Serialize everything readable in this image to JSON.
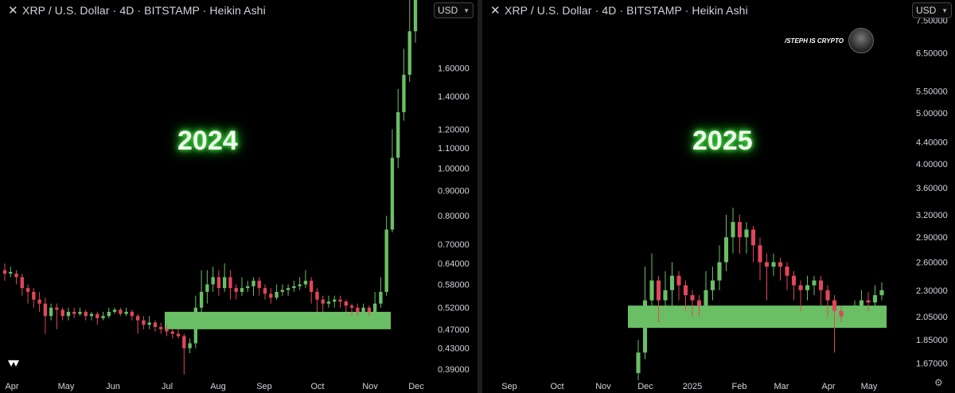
{
  "left": {
    "title": "XRP / U.S. Dollar · 4D · BITSTAMP · Heikin Ashi",
    "currency": "USD",
    "year_label": "2024",
    "chart_data": {
      "type": "candlestick",
      "scale": "log",
      "ylim": [
        0.37,
        2.2
      ],
      "y_ticks": [
        {
          "label": "1.60000",
          "value": 1.6
        },
        {
          "label": "1.40000",
          "value": 1.4
        },
        {
          "label": "1.20000",
          "value": 1.2
        },
        {
          "label": "1.10000",
          "value": 1.1
        },
        {
          "label": "1.00000",
          "value": 1.0
        },
        {
          "label": "0.90000",
          "value": 0.9
        },
        {
          "label": "0.80000",
          "value": 0.8
        },
        {
          "label": "0.70000",
          "value": 0.7
        },
        {
          "label": "0.64000",
          "value": 0.64
        },
        {
          "label": "0.58000",
          "value": 0.58
        },
        {
          "label": "0.52000",
          "value": 0.52
        },
        {
          "label": "0.47000",
          "value": 0.47
        },
        {
          "label": "0.43000",
          "value": 0.43
        },
        {
          "label": "0.39000",
          "value": 0.39
        }
      ],
      "x_ticks": [
        "Apr",
        "May",
        "Jun",
        "Jul",
        "Aug",
        "Sep",
        "Oct",
        "Nov",
        "Dec"
      ],
      "support_zone": {
        "low": 0.47,
        "high": 0.51
      },
      "candles": [
        [
          0.62,
          0.61,
          0.64,
          0.59
        ],
        [
          0.61,
          0.615,
          0.63,
          0.6
        ],
        [
          0.61,
          0.6,
          0.62,
          0.58
        ],
        [
          0.6,
          0.57,
          0.61,
          0.55
        ],
        [
          0.57,
          0.56,
          0.58,
          0.53
        ],
        [
          0.56,
          0.54,
          0.57,
          0.52
        ],
        [
          0.54,
          0.53,
          0.56,
          0.51
        ],
        [
          0.53,
          0.5,
          0.545,
          0.46
        ],
        [
          0.5,
          0.52,
          0.53,
          0.49
        ],
        [
          0.52,
          0.515,
          0.53,
          0.47
        ],
        [
          0.515,
          0.5,
          0.52,
          0.49
        ],
        [
          0.5,
          0.51,
          0.52,
          0.49
        ],
        [
          0.51,
          0.505,
          0.52,
          0.495
        ],
        [
          0.505,
          0.51,
          0.52,
          0.5
        ],
        [
          0.51,
          0.5,
          0.515,
          0.49
        ],
        [
          0.5,
          0.505,
          0.51,
          0.49
        ],
        [
          0.505,
          0.495,
          0.51,
          0.48
        ],
        [
          0.495,
          0.5,
          0.51,
          0.49
        ],
        [
          0.5,
          0.51,
          0.52,
          0.495
        ],
        [
          0.51,
          0.515,
          0.52,
          0.505
        ],
        [
          0.515,
          0.505,
          0.52,
          0.5
        ],
        [
          0.505,
          0.51,
          0.52,
          0.5
        ],
        [
          0.51,
          0.5,
          0.515,
          0.49
        ],
        [
          0.5,
          0.49,
          0.505,
          0.46
        ],
        [
          0.49,
          0.48,
          0.5,
          0.47
        ],
        [
          0.48,
          0.485,
          0.5,
          0.47
        ],
        [
          0.485,
          0.475,
          0.49,
          0.465
        ],
        [
          0.475,
          0.47,
          0.485,
          0.46
        ],
        [
          0.47,
          0.465,
          0.48,
          0.455
        ],
        [
          0.465,
          0.46,
          0.47,
          0.45
        ],
        [
          0.46,
          0.455,
          0.47,
          0.45
        ],
        [
          0.455,
          0.43,
          0.46,
          0.38
        ],
        [
          0.43,
          0.44,
          0.45,
          0.42
        ],
        [
          0.44,
          0.52,
          0.55,
          0.43
        ],
        [
          0.52,
          0.56,
          0.62,
          0.5
        ],
        [
          0.56,
          0.58,
          0.62,
          0.53
        ],
        [
          0.58,
          0.6,
          0.63,
          0.56
        ],
        [
          0.6,
          0.57,
          0.62,
          0.55
        ],
        [
          0.57,
          0.6,
          0.64,
          0.56
        ],
        [
          0.6,
          0.57,
          0.62,
          0.54
        ],
        [
          0.57,
          0.56,
          0.58,
          0.54
        ],
        [
          0.56,
          0.57,
          0.6,
          0.55
        ],
        [
          0.57,
          0.575,
          0.59,
          0.56
        ],
        [
          0.575,
          0.59,
          0.6,
          0.55
        ],
        [
          0.59,
          0.57,
          0.6,
          0.55
        ],
        [
          0.57,
          0.555,
          0.58,
          0.54
        ],
        [
          0.555,
          0.545,
          0.57,
          0.53
        ],
        [
          0.545,
          0.56,
          0.58,
          0.54
        ],
        [
          0.56,
          0.565,
          0.58,
          0.55
        ],
        [
          0.565,
          0.57,
          0.58,
          0.55
        ],
        [
          0.57,
          0.575,
          0.59,
          0.56
        ],
        [
          0.575,
          0.58,
          0.6,
          0.565
        ],
        [
          0.58,
          0.59,
          0.62,
          0.57
        ],
        [
          0.59,
          0.56,
          0.6,
          0.53
        ],
        [
          0.56,
          0.54,
          0.57,
          0.51
        ],
        [
          0.54,
          0.53,
          0.55,
          0.51
        ],
        [
          0.53,
          0.535,
          0.55,
          0.52
        ],
        [
          0.535,
          0.54,
          0.55,
          0.52
        ],
        [
          0.54,
          0.535,
          0.55,
          0.52
        ],
        [
          0.535,
          0.525,
          0.54,
          0.51
        ],
        [
          0.525,
          0.52,
          0.53,
          0.5
        ],
        [
          0.52,
          0.51,
          0.53,
          0.5
        ],
        [
          0.51,
          0.52,
          0.53,
          0.5
        ],
        [
          0.52,
          0.51,
          0.525,
          0.5
        ],
        [
          0.51,
          0.53,
          0.56,
          0.5
        ],
        [
          0.53,
          0.56,
          0.6,
          0.52
        ],
        [
          0.56,
          0.75,
          0.8,
          0.55
        ],
        [
          0.75,
          1.05,
          1.2,
          0.74
        ],
        [
          1.05,
          1.3,
          1.45,
          1.0
        ],
        [
          1.3,
          1.55,
          1.75,
          1.25
        ],
        [
          1.55,
          1.9,
          2.2,
          1.5
        ],
        [
          1.9,
          2.2,
          2.2,
          1.8
        ]
      ]
    }
  },
  "right": {
    "title": "XRP / U.S. Dollar · 4D · BITSTAMP · Heikin Ashi",
    "currency": "USD",
    "year_label": "2025",
    "watermark": "/STEPH IS CRYPTO",
    "chart_data": {
      "type": "candlestick",
      "scale": "log",
      "ylim": [
        1.55,
        8.2
      ],
      "y_ticks": [
        {
          "label": "7.50000",
          "value": 7.5
        },
        {
          "label": "6.50000",
          "value": 6.5
        },
        {
          "label": "5.50000",
          "value": 5.5
        },
        {
          "label": "5.00000",
          "value": 5.0
        },
        {
          "label": "4.40000",
          "value": 4.4
        },
        {
          "label": "4.00000",
          "value": 4.0
        },
        {
          "label": "3.60000",
          "value": 3.6
        },
        {
          "label": "3.20000",
          "value": 3.2
        },
        {
          "label": "2.90000",
          "value": 2.9
        },
        {
          "label": "2.60000",
          "value": 2.6
        },
        {
          "label": "2.30000",
          "value": 2.3
        },
        {
          "label": "2.05000",
          "value": 2.05
        },
        {
          "label": "1.85000",
          "value": 1.85
        },
        {
          "label": "1.67000",
          "value": 1.67
        }
      ],
      "x_ticks": [
        "Sep",
        "Oct",
        "Nov",
        "Dec",
        "2025",
        "Feb",
        "Mar",
        "Apr",
        "May"
      ],
      "support_zone": {
        "low": 1.95,
        "high": 2.15
      },
      "candles": [
        [
          1.6,
          1.75,
          1.85,
          1.55
        ],
        [
          1.75,
          2.2,
          2.55,
          1.7
        ],
        [
          2.2,
          2.4,
          2.7,
          2.0
        ],
        [
          2.4,
          2.2,
          2.45,
          2.0
        ],
        [
          2.2,
          2.3,
          2.5,
          2.1
        ],
        [
          2.3,
          2.45,
          2.6,
          2.15
        ],
        [
          2.45,
          2.35,
          2.5,
          2.2
        ],
        [
          2.35,
          2.25,
          2.4,
          2.1
        ],
        [
          2.25,
          2.2,
          2.3,
          2.05
        ],
        [
          2.2,
          2.15,
          2.25,
          2.05
        ],
        [
          2.15,
          2.3,
          2.5,
          2.1
        ],
        [
          2.3,
          2.4,
          2.55,
          2.2
        ],
        [
          2.4,
          2.6,
          2.8,
          2.3
        ],
        [
          2.6,
          2.9,
          3.2,
          2.5
        ],
        [
          2.9,
          3.1,
          3.3,
          2.7
        ],
        [
          3.1,
          2.9,
          3.2,
          2.7
        ],
        [
          2.9,
          3.0,
          3.1,
          2.7
        ],
        [
          3.0,
          2.8,
          3.05,
          2.6
        ],
        [
          2.8,
          2.6,
          2.9,
          2.4
        ],
        [
          2.6,
          2.55,
          2.7,
          2.2
        ],
        [
          2.55,
          2.6,
          2.7,
          2.45
        ],
        [
          2.6,
          2.55,
          2.65,
          2.4
        ],
        [
          2.55,
          2.45,
          2.6,
          2.3
        ],
        [
          2.45,
          2.35,
          2.5,
          2.2
        ],
        [
          2.35,
          2.3,
          2.4,
          2.1
        ],
        [
          2.3,
          2.35,
          2.45,
          2.2
        ],
        [
          2.35,
          2.4,
          2.45,
          2.25
        ],
        [
          2.4,
          2.3,
          2.45,
          2.15
        ],
        [
          2.3,
          2.2,
          2.35,
          2.05
        ],
        [
          2.2,
          2.1,
          2.25,
          1.75
        ],
        [
          2.1,
          2.05,
          2.15,
          2.0
        ],
        [
          2.05,
          2.1,
          2.15,
          2.0
        ],
        [
          2.1,
          2.15,
          2.2,
          2.05
        ],
        [
          2.15,
          2.2,
          2.3,
          2.1
        ],
        [
          2.2,
          2.18,
          2.28,
          2.1
        ],
        [
          2.18,
          2.25,
          2.35,
          2.15
        ],
        [
          2.25,
          2.3,
          2.38,
          2.2
        ]
      ]
    }
  }
}
